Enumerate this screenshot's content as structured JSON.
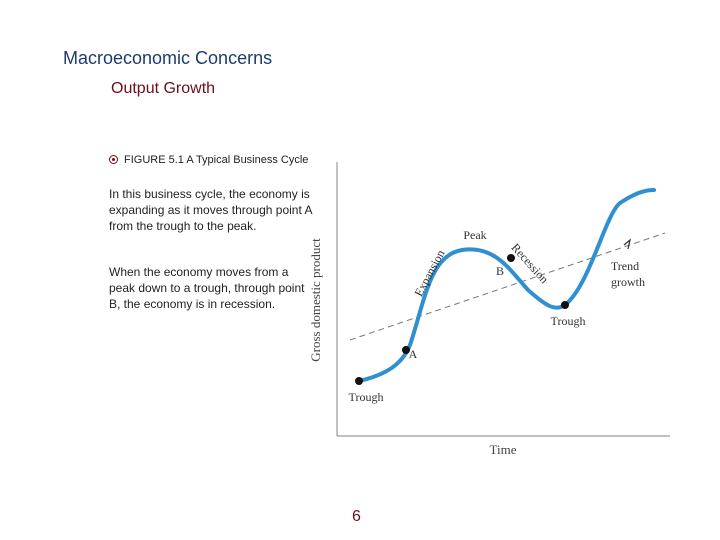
{
  "slide": {
    "title": "Macroeconomic Concerns",
    "subtitle": "Output Growth",
    "figure_label": "FIGURE 5.1  A Typical Business Cycle",
    "paragraph_1": "In this business cycle, the economy is expanding as it moves through point A from the trough to the peak.",
    "paragraph_2": "When the economy moves from a peak down to a trough, through point B, the economy is in recession.",
    "page_number": "6"
  },
  "diagram": {
    "y_axis_label": "Gross domestic product",
    "x_axis_label": "Time",
    "labels": {
      "trough_1": "Trough",
      "point_a": "A",
      "expansion": "Expansion",
      "peak": "Peak",
      "point_b": "B",
      "recession": "Recession",
      "trough_2": "Trough",
      "trend_line_1": "Trend",
      "trend_line_2": "growth"
    },
    "colors": {
      "curve": "#2f8fd0",
      "trend": "#777777",
      "axis": "#999999",
      "point": "#111111"
    }
  }
}
